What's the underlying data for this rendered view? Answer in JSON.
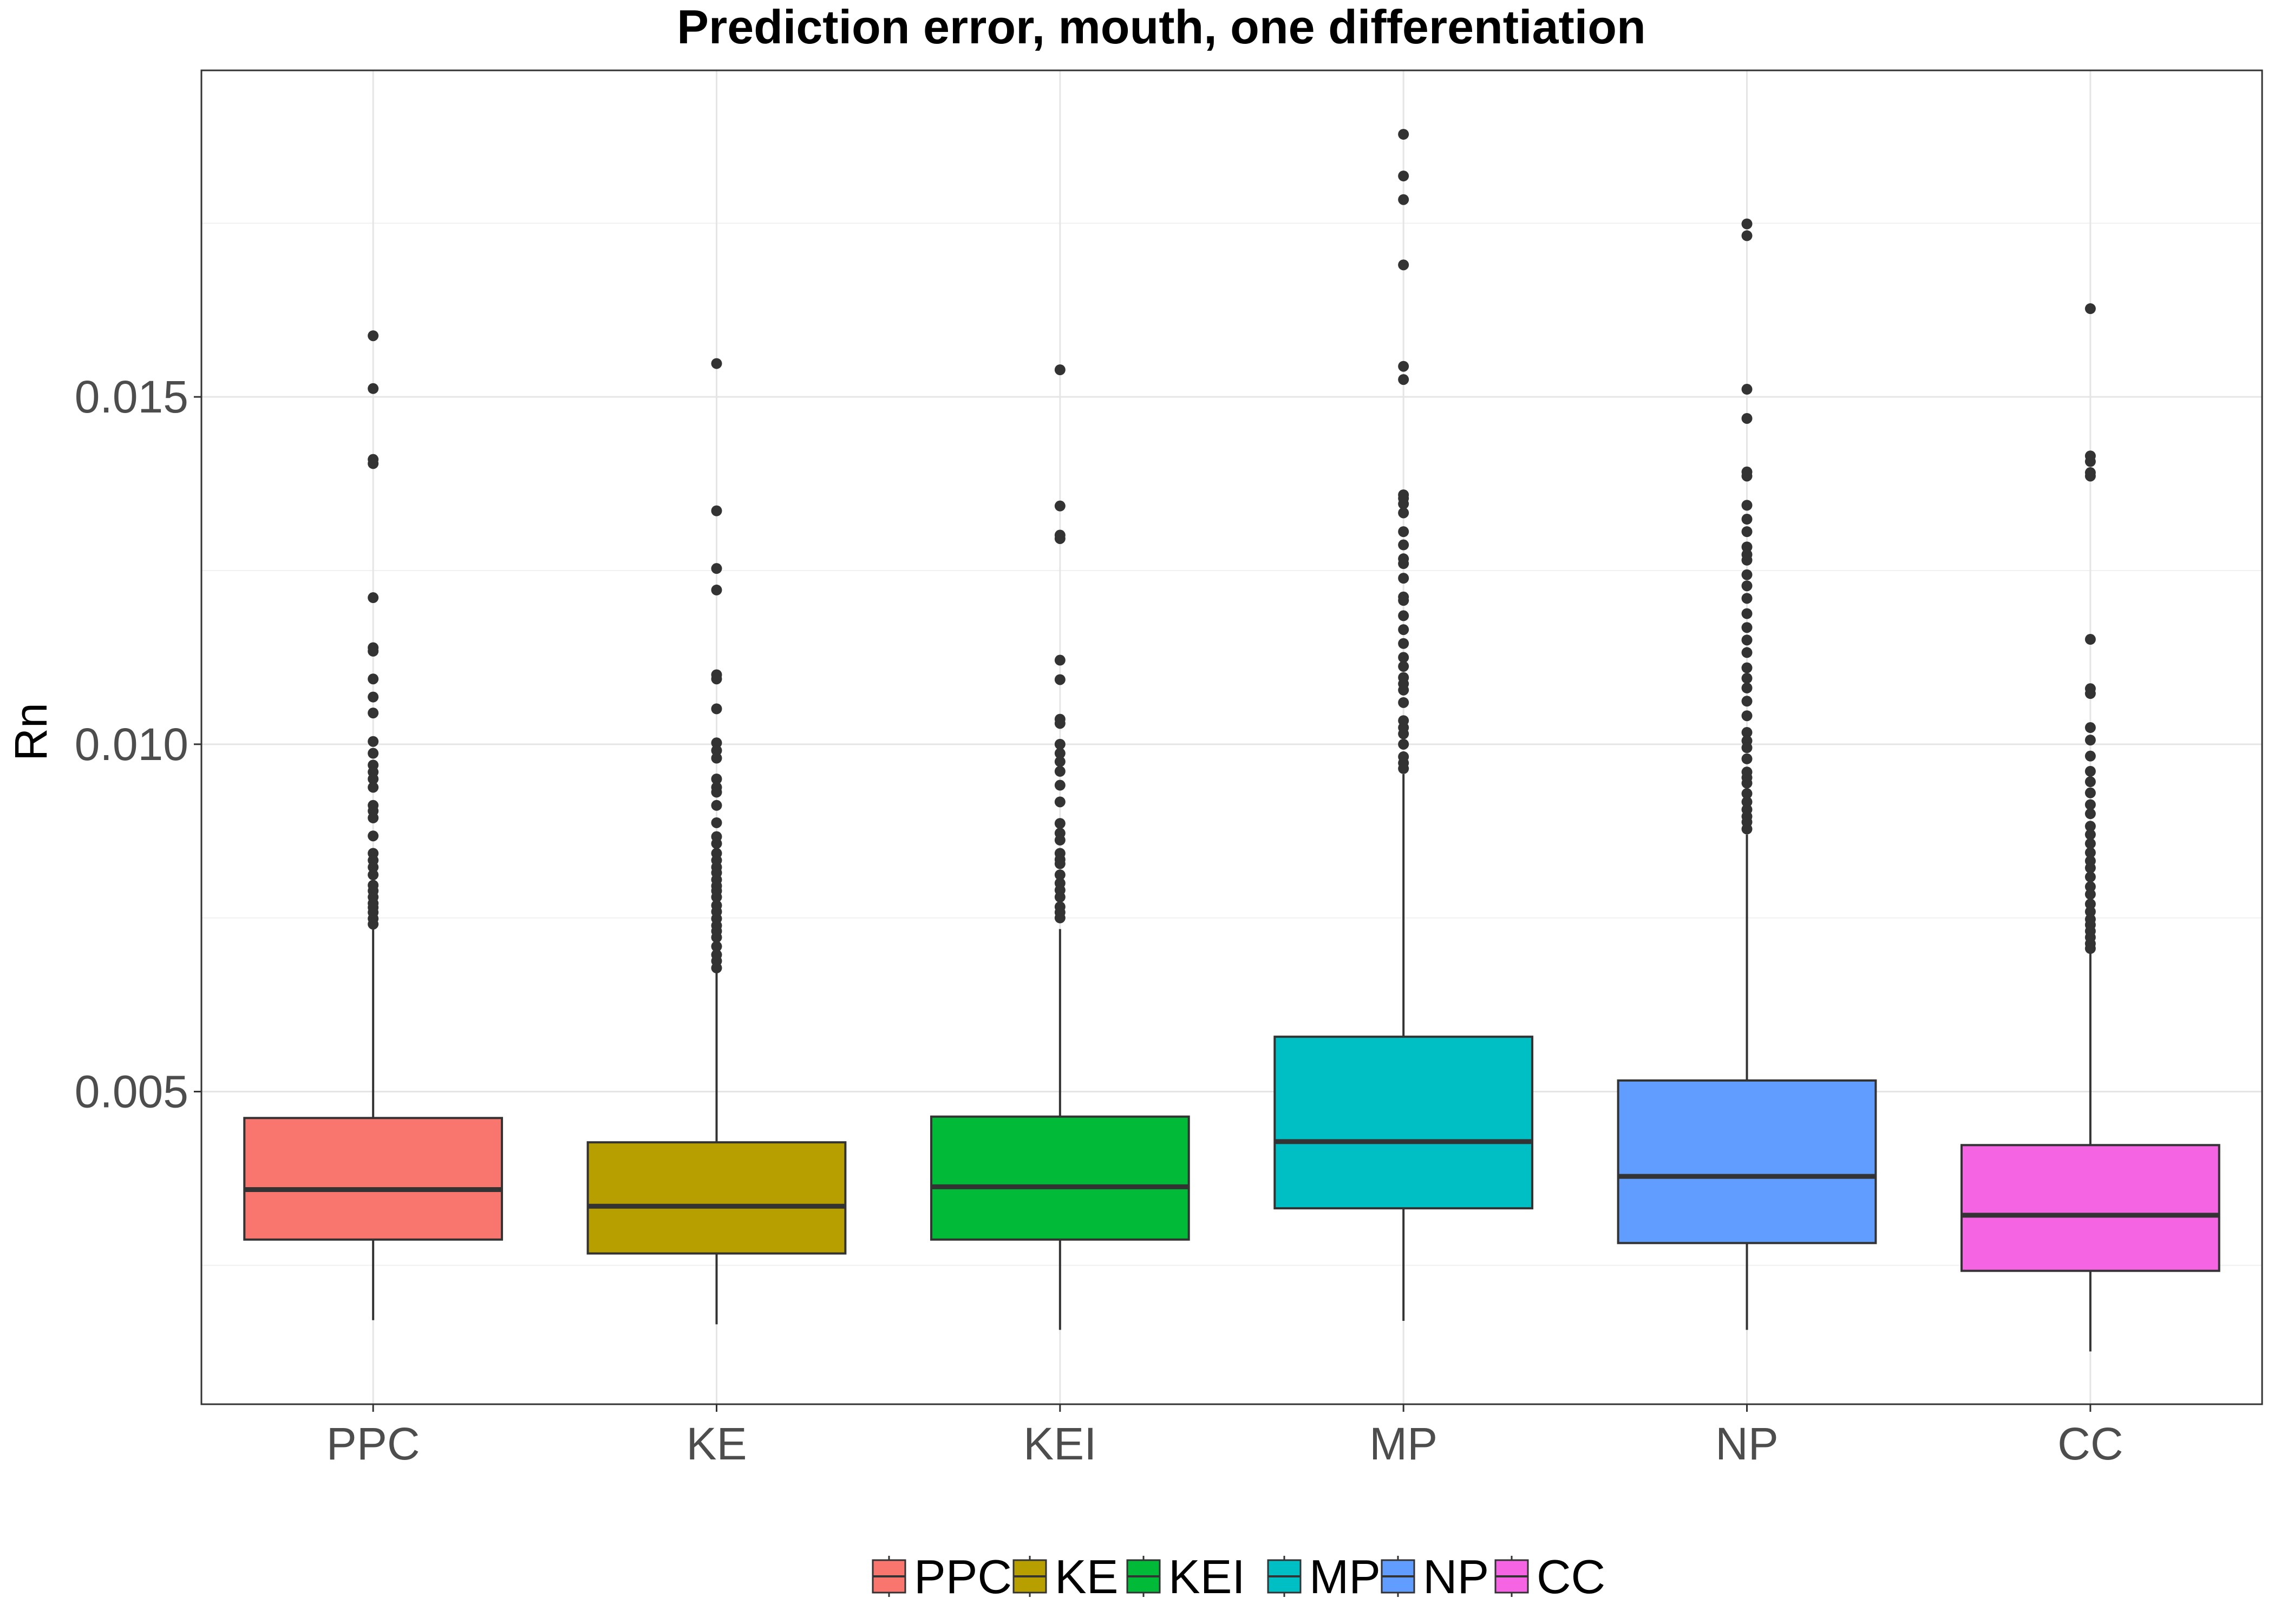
{
  "chart_data": {
    "type": "boxplot",
    "title": "Prediction error, mouth, one differentiation",
    "xlabel": "",
    "ylabel": "Rn",
    "ylim": [
      0.0005,
      0.0197
    ],
    "yticks": [
      0.005,
      0.01,
      0.015
    ],
    "ytick_labels": [
      "0.005",
      "0.010",
      "0.015"
    ],
    "grid": true,
    "legend_position": "bottom",
    "categories": [
      "PPC",
      "KE",
      "KEI",
      "MP",
      "NP",
      "CC"
    ],
    "series": [
      {
        "category": "PPC",
        "color": "#F8766D",
        "whisker_low": 0.00171,
        "q1": 0.00287,
        "median": 0.00359,
        "q3": 0.00462,
        "whisker_high": 0.00734,
        "outliers": [
          0.01588,
          0.01512,
          0.0141,
          0.01404,
          0.01211,
          0.01139,
          0.01134,
          0.01094,
          0.01068,
          0.01045,
          0.01004,
          0.00987,
          0.0097,
          0.0096,
          0.0095,
          0.00938,
          0.00912,
          0.00904,
          0.00894,
          0.00868,
          0.00843,
          0.00833,
          0.00823,
          0.00812,
          0.00797,
          0.00789,
          0.0078,
          0.00771,
          0.00765,
          0.00758,
          0.00749,
          0.00741
        ]
      },
      {
        "category": "KE",
        "color": "#B79F00",
        "whisker_low": 0.00165,
        "q1": 0.00267,
        "median": 0.00335,
        "q3": 0.00427,
        "whisker_high": 0.00672,
        "outliers": [
          0.01548,
          0.01336,
          0.01253,
          0.01222,
          0.011,
          0.01094,
          0.01051,
          0.01002,
          0.00991,
          0.0098,
          0.0095,
          0.00938,
          0.00931,
          0.00912,
          0.00887,
          0.00867,
          0.00857,
          0.00843,
          0.00833,
          0.00823,
          0.00815,
          0.00805,
          0.00796,
          0.00789,
          0.0078,
          0.00768,
          0.00759,
          0.00749,
          0.00739,
          0.00731,
          0.00722,
          0.00709,
          0.00697,
          0.00688,
          0.00678
        ]
      },
      {
        "category": "KEI",
        "color": "#00BA38",
        "whisker_low": 0.00157,
        "q1": 0.00287,
        "median": 0.00363,
        "q3": 0.00464,
        "whisker_high": 0.00734,
        "outliers": [
          0.01539,
          0.01343,
          0.01301,
          0.01296,
          0.01121,
          0.01093,
          0.01036,
          0.0103,
          0.01,
          0.00987,
          0.00975,
          0.00961,
          0.00941,
          0.00917,
          0.00886,
          0.00872,
          0.00862,
          0.00843,
          0.00834,
          0.00828,
          0.00812,
          0.008,
          0.0079,
          0.0078,
          0.00766,
          0.00758,
          0.0075
        ]
      },
      {
        "category": "MP",
        "color": "#00BFC4",
        "whisker_low": 0.0017,
        "q1": 0.00332,
        "median": 0.00428,
        "q3": 0.00579,
        "whisker_high": 0.00957,
        "outliers": [
          0.01878,
          0.01818,
          0.01784,
          0.0169,
          0.01544,
          0.01525,
          0.01359,
          0.01354,
          0.01346,
          0.01333,
          0.01306,
          0.01287,
          0.01267,
          0.0126,
          0.01239,
          0.01212,
          0.01207,
          0.01185,
          0.01165,
          0.01145,
          0.01125,
          0.01112,
          0.01096,
          0.01087,
          0.01078,
          0.0106,
          0.01034,
          0.01024,
          0.01015,
          0.01,
          0.00982,
          0.00973,
          0.00965
        ]
      },
      {
        "category": "NP",
        "color": "#619CFF",
        "whisker_low": 0.00157,
        "q1": 0.00282,
        "median": 0.00378,
        "q3": 0.00516,
        "whisker_high": 0.0087,
        "outliers": [
          0.01749,
          0.01732,
          0.01511,
          0.01469,
          0.01392,
          0.01386,
          0.01344,
          0.01324,
          0.01306,
          0.01284,
          0.01273,
          0.01265,
          0.01244,
          0.01228,
          0.0121,
          0.01188,
          0.01168,
          0.0115,
          0.01132,
          0.0111,
          0.01095,
          0.01081,
          0.01062,
          0.01041,
          0.01017,
          0.01005,
          0.00995,
          0.00979,
          0.0096,
          0.00952,
          0.00944,
          0.00929,
          0.00917,
          0.00906,
          0.00896,
          0.00888,
          0.00878
        ]
      },
      {
        "category": "CC",
        "color": "#F564E3",
        "whisker_low": 0.00126,
        "q1": 0.00242,
        "median": 0.00322,
        "q3": 0.00423,
        "whisker_high": 0.00699,
        "outliers": [
          0.01627,
          0.01415,
          0.01407,
          0.01391,
          0.01386,
          0.01151,
          0.0108,
          0.01073,
          0.01024,
          0.01006,
          0.00983,
          0.00961,
          0.00946,
          0.0093,
          0.00913,
          0.009,
          0.00882,
          0.0087,
          0.00857,
          0.00844,
          0.00832,
          0.00822,
          0.00809,
          0.00795,
          0.00784,
          0.0077,
          0.00759,
          0.00748,
          0.0074,
          0.00731,
          0.00722,
          0.00713,
          0.00706
        ]
      }
    ],
    "legend": [
      "PPC",
      "KE",
      "KEI",
      "MP",
      "NP",
      "CC"
    ]
  }
}
